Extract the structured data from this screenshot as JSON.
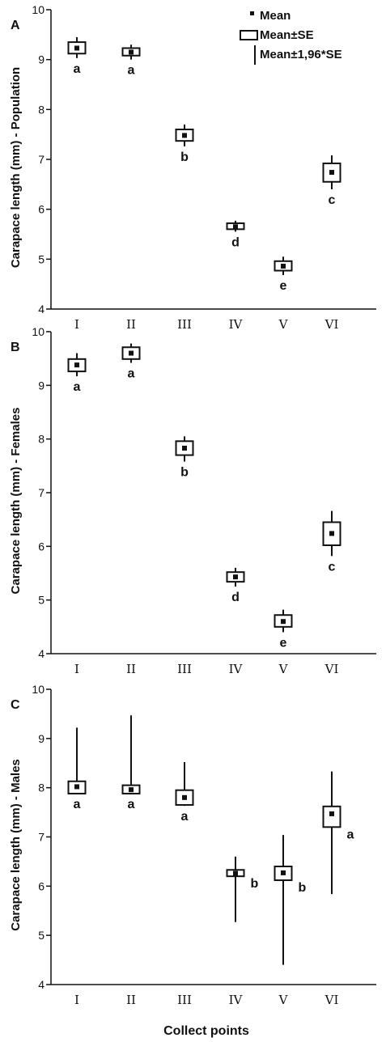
{
  "figure": {
    "xlabel": "Collect points",
    "legend": {
      "mean": "Mean",
      "se": "Mean±SE",
      "ci": "Mean±1,96*SE"
    }
  },
  "chart_data": [
    {
      "type": "box",
      "panel_label": "A",
      "ylabel": "Carapace length (mm) - Population",
      "ylim": [
        4,
        10
      ],
      "yticks": [
        "4",
        "5",
        "6",
        "7",
        "8",
        "9",
        "10"
      ],
      "categories": [
        "I",
        "II",
        "III",
        "IV",
        "V",
        "VI"
      ],
      "mean": [
        9.23,
        9.15,
        7.48,
        5.65,
        4.86,
        6.74
      ],
      "se_low": [
        9.12,
        9.08,
        7.37,
        5.6,
        4.77,
        6.55
      ],
      "se_high": [
        9.35,
        9.23,
        7.6,
        5.72,
        4.96,
        6.92
      ],
      "ci_low": [
        9.03,
        9.0,
        7.26,
        5.55,
        4.68,
        6.4
      ],
      "ci_high": [
        9.45,
        9.3,
        7.7,
        5.77,
        5.05,
        7.08
      ],
      "letters": [
        "a",
        "a",
        "b",
        "d",
        "e",
        "c"
      ],
      "letter_side": "below"
    },
    {
      "type": "box",
      "panel_label": "B",
      "ylabel": "Carapace length (mm) - Females",
      "ylim": [
        4,
        10
      ],
      "yticks": [
        "4",
        "5",
        "6",
        "7",
        "8",
        "9",
        "10"
      ],
      "categories": [
        "I",
        "II",
        "III",
        "IV",
        "V",
        "VI"
      ],
      "mean": [
        9.38,
        9.6,
        7.83,
        5.43,
        4.6,
        6.24
      ],
      "se_low": [
        9.26,
        9.49,
        7.7,
        5.34,
        4.5,
        6.02
      ],
      "se_high": [
        9.49,
        9.71,
        7.96,
        5.52,
        4.72,
        6.45
      ],
      "ci_low": [
        9.17,
        9.42,
        7.58,
        5.25,
        4.4,
        5.82
      ],
      "ci_high": [
        9.6,
        9.78,
        8.05,
        5.6,
        4.82,
        6.66
      ],
      "letters": [
        "a",
        "a",
        "b",
        "d",
        "e",
        "c"
      ],
      "letter_side": "below"
    },
    {
      "type": "box",
      "panel_label": "C",
      "ylabel": "Carapace length (mm) - Males",
      "ylim": [
        4,
        10
      ],
      "yticks": [
        "4",
        "5",
        "6",
        "7",
        "8",
        "9",
        "10"
      ],
      "categories": [
        "I",
        "II",
        "III",
        "IV",
        "V",
        "VI"
      ],
      "mean": [
        8.02,
        7.96,
        7.8,
        6.26,
        6.27,
        7.47
      ],
      "se_low": [
        7.88,
        7.88,
        7.65,
        6.2,
        6.12,
        7.2
      ],
      "se_high": [
        8.13,
        8.05,
        7.95,
        6.33,
        6.4,
        7.62
      ],
      "ci_low": [
        7.88,
        7.88,
        7.63,
        5.27,
        4.4,
        5.84
      ],
      "ci_high": [
        9.22,
        9.47,
        8.52,
        6.6,
        7.04,
        8.33
      ],
      "letters": [
        "a",
        "a",
        "a",
        "b",
        "b",
        "a"
      ],
      "letter_side": [
        "below",
        "below",
        "below",
        "right",
        "right",
        "right"
      ]
    }
  ]
}
